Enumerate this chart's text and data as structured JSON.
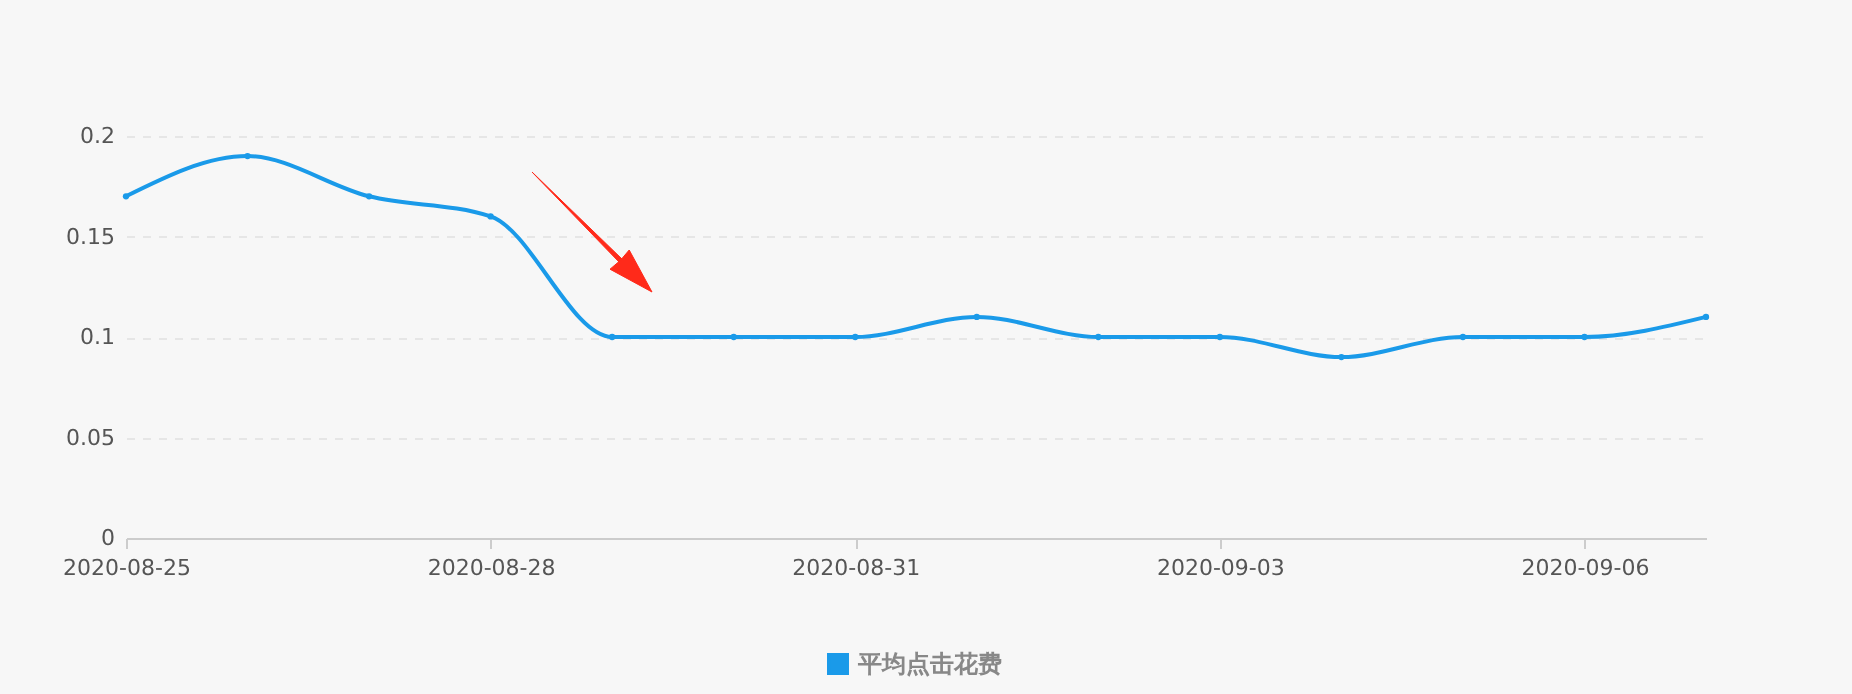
{
  "chart_data": {
    "type": "line",
    "x": [
      "2020-08-25",
      "2020-08-26",
      "2020-08-27",
      "2020-08-28",
      "2020-08-29",
      "2020-08-30",
      "2020-08-31",
      "2020-09-01",
      "2020-09-02",
      "2020-09-03",
      "2020-09-04",
      "2020-09-05",
      "2020-09-06",
      "2020-09-07"
    ],
    "series": [
      {
        "name": "平均点击花费",
        "color": "#1a9ae9",
        "values": [
          0.17,
          0.19,
          0.17,
          0.16,
          0.1,
          0.1,
          0.1,
          0.11,
          0.1,
          0.1,
          0.09,
          0.1,
          0.1,
          0.11
        ]
      }
    ],
    "xlim": [
      "2020-08-25",
      "2020-09-07"
    ],
    "xticks": [
      "2020-08-25",
      "2020-08-28",
      "2020-08-31",
      "2020-09-03",
      "2020-09-06"
    ],
    "ylim": [
      0,
      0.2
    ],
    "yticks": [
      0,
      0.05,
      0.1,
      0.15,
      0.2
    ],
    "grid": "y",
    "legend": "bottom",
    "marker": "circle",
    "line_style": "solid"
  }
}
